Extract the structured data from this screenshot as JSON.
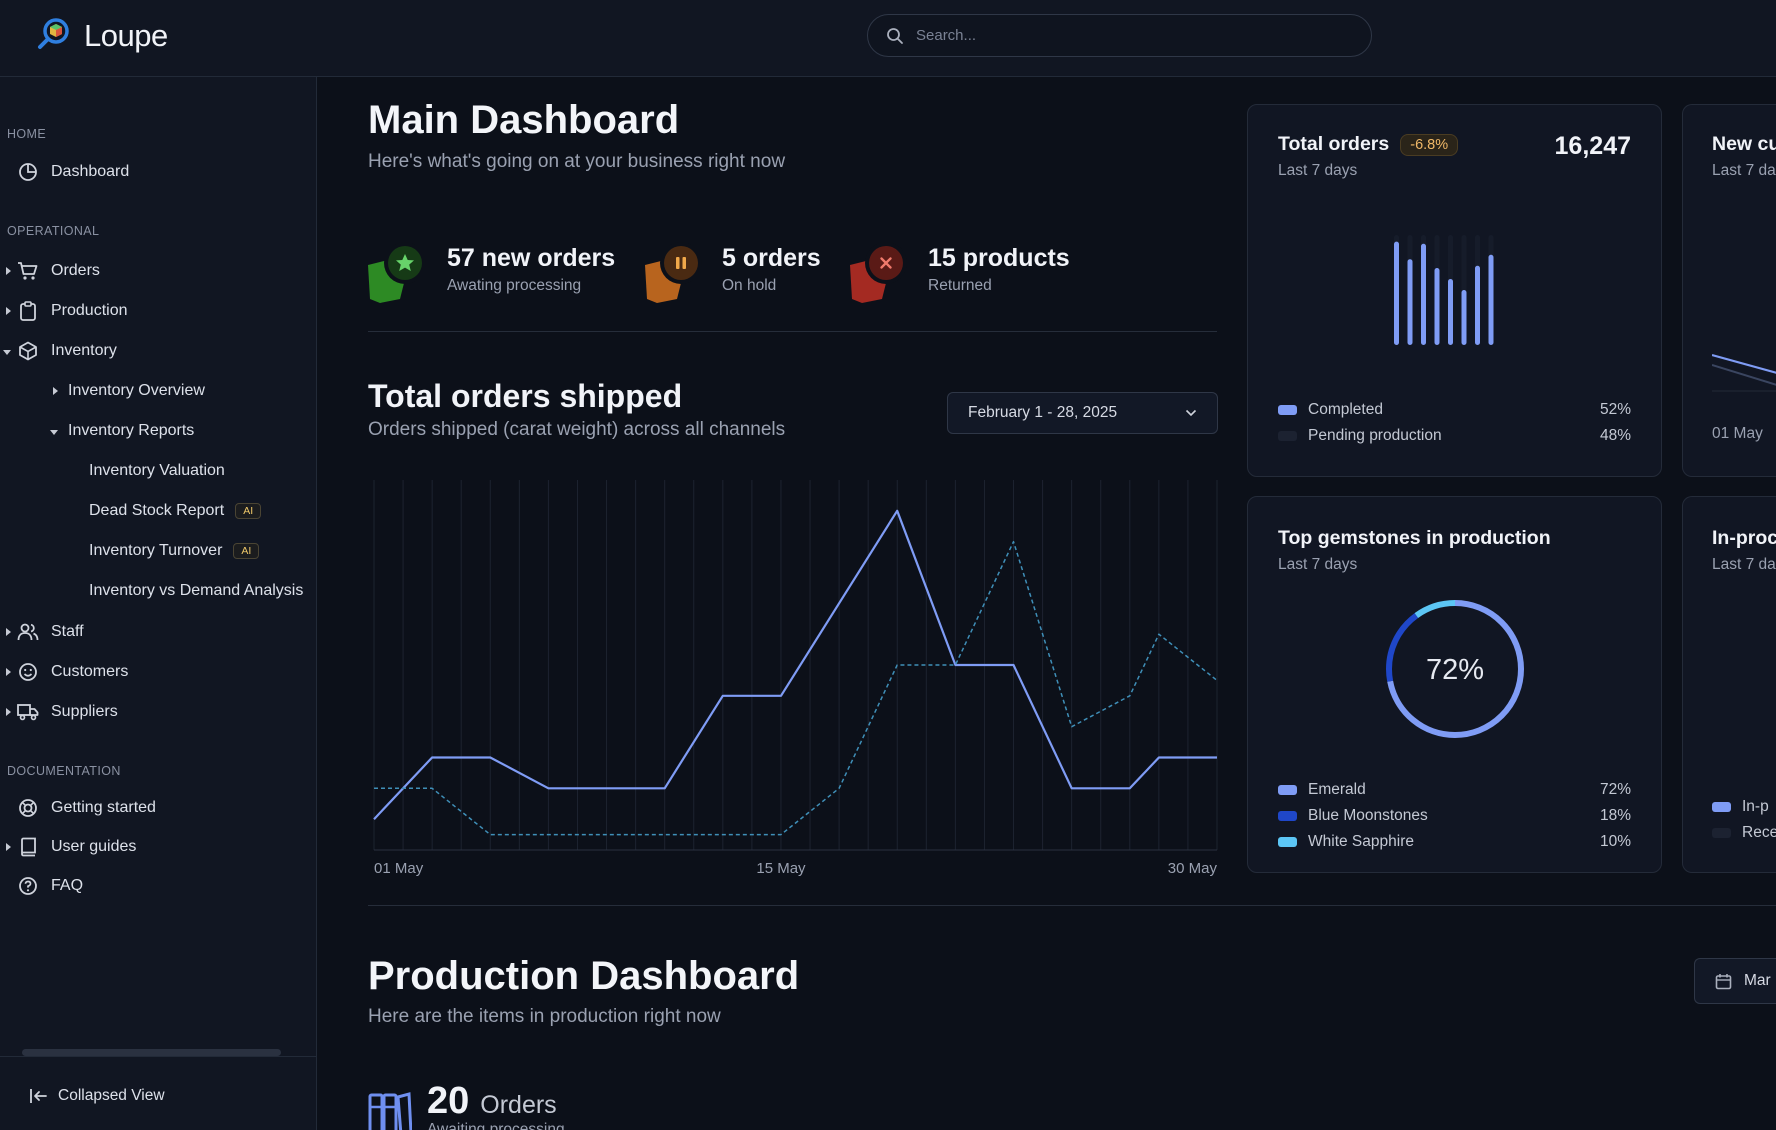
{
  "app": {
    "name": "Loupe"
  },
  "search": {
    "placeholder": "Search..."
  },
  "sidebar": {
    "sections": {
      "home": "HOME",
      "operational": "OPERATIONAL",
      "documentation": "DOCUMENTATION"
    },
    "items": {
      "dashboard": "Dashboard",
      "orders": "Orders",
      "production": "Production",
      "inventory": "Inventory",
      "inventory_overview": "Inventory Overview",
      "inventory_reports": "Inventory Reports",
      "inventory_valuation": "Inventory Valuation",
      "dead_stock": "Dead Stock Report",
      "inventory_turnover": "Inventory Turnover",
      "inventory_vs_demand": "Inventory vs Demand Analysis",
      "staff": "Staff",
      "customers": "Customers",
      "suppliers": "Suppliers",
      "getting_started": "Getting started",
      "user_guides": "User guides",
      "faq": "FAQ"
    },
    "ai_badge": "AI",
    "collapse": "Collapsed View"
  },
  "main": {
    "title": "Main Dashboard",
    "subtitle": "Here's what's going on at your business right now",
    "stats": [
      {
        "value": "57 new orders",
        "label": "Awating processing",
        "color": "#3a9a2e"
      },
      {
        "value": "5 orders",
        "label": "On hold",
        "color": "#c76a1c"
      },
      {
        "value": "15 products",
        "label": "Returned",
        "color": "#b2322a"
      }
    ],
    "shipped": {
      "title": "Total orders shipped",
      "subtitle": "Orders shipped (carat weight) across all channels",
      "date_range": "February 1 - 28, 2025"
    }
  },
  "chart_data": {
    "type": "line",
    "x_tick_labels": [
      "01 May",
      "15 May",
      "30 May"
    ],
    "x": [
      1,
      3,
      5,
      7,
      9,
      11,
      13,
      15,
      17,
      19,
      21,
      23,
      25,
      27,
      28,
      30
    ],
    "series": [
      {
        "values": [
          10,
          30,
          30,
          20,
          20,
          20,
          50,
          50,
          80,
          110,
          60,
          60,
          20,
          20,
          30,
          30
        ],
        "style": "solid",
        "color": "#7f9cf5"
      },
      {
        "values": [
          20,
          20,
          5,
          5,
          5,
          5,
          5,
          5,
          20,
          60,
          60,
          100,
          40,
          50,
          70,
          55
        ],
        "style": "dashed",
        "color": "#3f8fb8"
      }
    ],
    "ylim": [
      0,
      120
    ]
  },
  "cards": {
    "total_orders": {
      "title": "Total orders",
      "change": "-6.8%",
      "period": "Last 7 days",
      "value": "16,247",
      "bars": [
        0.94,
        0.78,
        0.92,
        0.7,
        0.6,
        0.5,
        0.72,
        0.82
      ],
      "legend": [
        {
          "label": "Completed",
          "pct": "52%",
          "color": "#7f9cf5"
        },
        {
          "label": "Pending production",
          "pct": "48%",
          "color": "#1c2231"
        }
      ]
    },
    "new_customers": {
      "title": "New cu",
      "period": "Last 7 da",
      "tick": "01 May"
    },
    "gemstones": {
      "title": "Top gemstones in production",
      "period": "Last 7 days",
      "center": "72%",
      "legend": [
        {
          "label": "Emerald",
          "pct": "72%",
          "value": 72,
          "color": "#7f9cf5"
        },
        {
          "label": "Blue Moonstones",
          "pct": "18%",
          "value": 18,
          "color": "#1f47c9"
        },
        {
          "label": "White Sapphire",
          "pct": "10%",
          "value": 10,
          "color": "#5cc6f5"
        }
      ]
    },
    "in_production": {
      "title": "In-proc",
      "period": "Last 7 da",
      "legend": [
        "In-p",
        "Rece"
      ]
    }
  },
  "production": {
    "title": "Production Dashboard",
    "subtitle": "Here are the items in production right now",
    "date_btn": "Mar",
    "orders_count": "20",
    "orders_label": "Orders",
    "orders_sub": "Awaiting processing"
  }
}
